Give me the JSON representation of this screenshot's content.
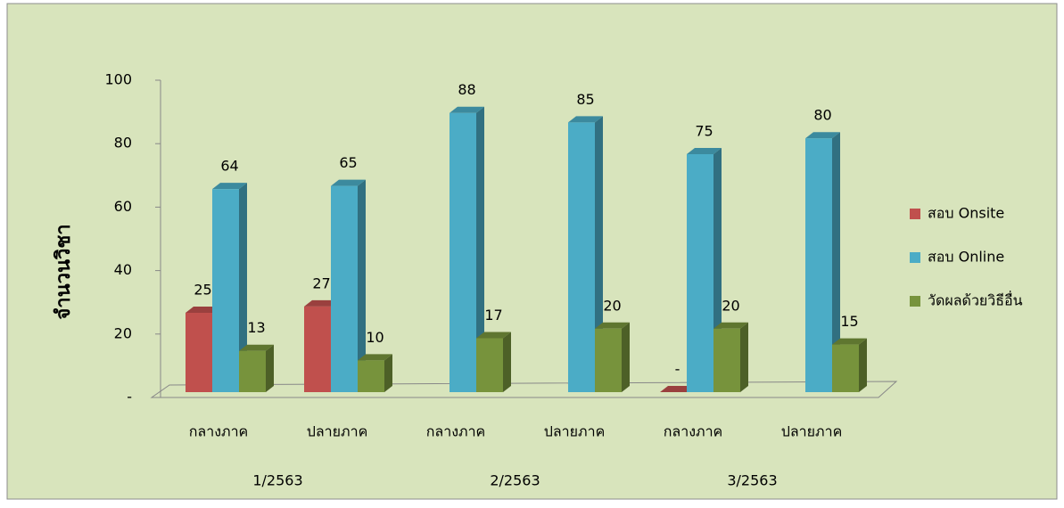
{
  "chart_data": {
    "type": "bar3d",
    "y_axis_label": "จำนวนวิชา",
    "categories": [
      "กลางภาค",
      "ปลายภาค",
      "กลางภาค",
      "ปลายภาค",
      "กลางภาค",
      "ปลายภาค"
    ],
    "group_labels": [
      "1/2563",
      "2/2563",
      "3/2563"
    ],
    "series": [
      {
        "name": "สอบ Onsite",
        "color": "#c0504d",
        "values": [
          25,
          27,
          null,
          null,
          0,
          null
        ],
        "value_labels": [
          "25",
          "27",
          null,
          null,
          "-",
          null
        ]
      },
      {
        "name": "สอบ Online",
        "color": "#4bacc6",
        "values": [
          64,
          65,
          88,
          85,
          75,
          80
        ]
      },
      {
        "name": "วัดผลด้วยวิธีอื่น",
        "color": "#77933c",
        "values": [
          13,
          10,
          17,
          20,
          20,
          15
        ]
      }
    ],
    "ylim": [
      0,
      100
    ],
    "yticks": [
      {
        "value": 0,
        "label": "-"
      },
      20,
      40,
      60,
      80,
      100
    ],
    "legend": "right"
  }
}
